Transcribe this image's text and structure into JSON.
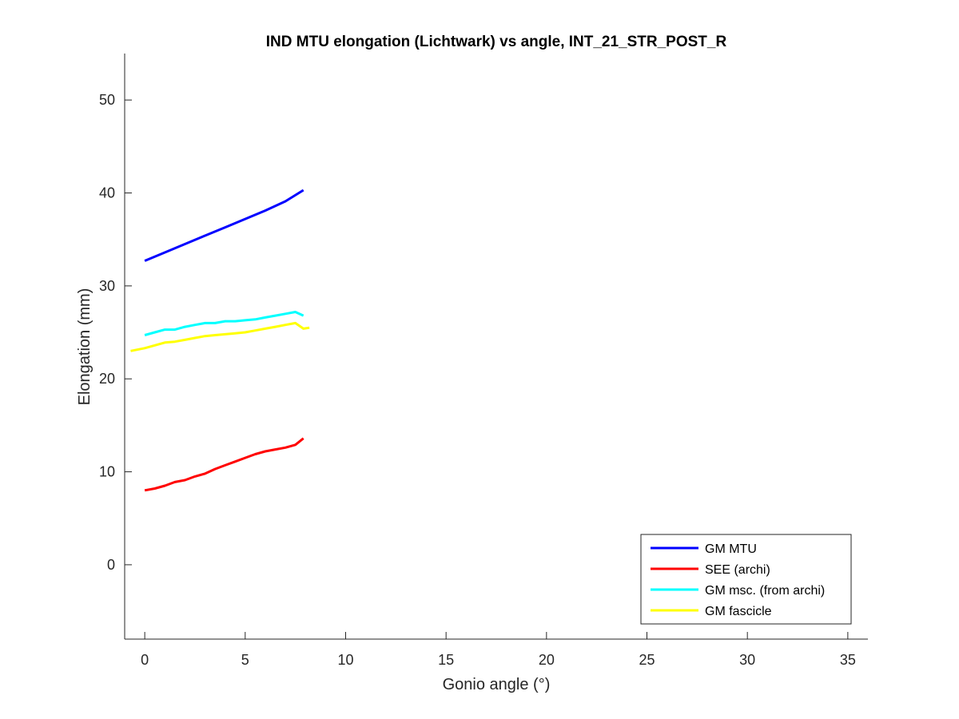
{
  "chart_data": {
    "type": "line",
    "title": "IND MTU elongation (Lichtwark) vs angle, INT_21_STR_POST_R",
    "xlabel": "Gonio angle (°)",
    "ylabel": "Elongation (mm)",
    "xlim": [
      -1,
      36
    ],
    "ylim": [
      -8,
      55
    ],
    "xticks": [
      0,
      5,
      10,
      15,
      20,
      25,
      30,
      35
    ],
    "yticks": [
      0,
      10,
      20,
      30,
      40,
      50
    ],
    "xtick_labels": [
      "0",
      "5",
      "10",
      "15",
      "20",
      "25",
      "30",
      "35"
    ],
    "ytick_labels": [
      "0",
      "10",
      "20",
      "30",
      "40",
      "50"
    ],
    "grid": false,
    "legend_position": "bottom-right",
    "series": [
      {
        "name": "GM MTU",
        "color": "#0000ff",
        "x": [
          0,
          1,
          2,
          3,
          4,
          5,
          6,
          7,
          7.9
        ],
        "y": [
          32.7,
          33.6,
          34.5,
          35.4,
          36.3,
          37.2,
          38.1,
          39.1,
          40.3
        ]
      },
      {
        "name": "SEE (archi)",
        "color": "#ff0000",
        "x": [
          0,
          0.5,
          1,
          1.5,
          2,
          2.5,
          3,
          3.5,
          4,
          4.5,
          5,
          5.5,
          6,
          6.5,
          7,
          7.5,
          7.9
        ],
        "y": [
          8.0,
          8.2,
          8.5,
          8.9,
          9.1,
          9.5,
          9.8,
          10.3,
          10.7,
          11.1,
          11.5,
          11.9,
          12.2,
          12.4,
          12.6,
          12.9,
          13.6
        ]
      },
      {
        "name": "GM msc. (from archi)",
        "color": "#00ffff",
        "x": [
          0,
          0.5,
          1,
          1.5,
          2,
          2.5,
          3,
          3.5,
          4,
          4.5,
          5,
          5.5,
          6,
          6.5,
          7,
          7.5,
          7.9
        ],
        "y": [
          24.7,
          25.0,
          25.3,
          25.3,
          25.6,
          25.8,
          26.0,
          26.0,
          26.2,
          26.2,
          26.3,
          26.4,
          26.6,
          26.8,
          27.0,
          27.2,
          26.8
        ]
      },
      {
        "name": "GM fascicle",
        "color": "#ffff00",
        "x": [
          -0.7,
          0,
          0.5,
          1,
          1.5,
          2,
          2.5,
          3,
          3.5,
          4,
          4.5,
          5,
          5.5,
          6,
          6.5,
          7,
          7.5,
          7.9,
          8.2
        ],
        "y": [
          23.0,
          23.3,
          23.6,
          23.9,
          24.0,
          24.2,
          24.4,
          24.6,
          24.7,
          24.8,
          24.9,
          25.0,
          25.2,
          25.4,
          25.6,
          25.8,
          26.0,
          25.4,
          25.5
        ]
      }
    ]
  }
}
